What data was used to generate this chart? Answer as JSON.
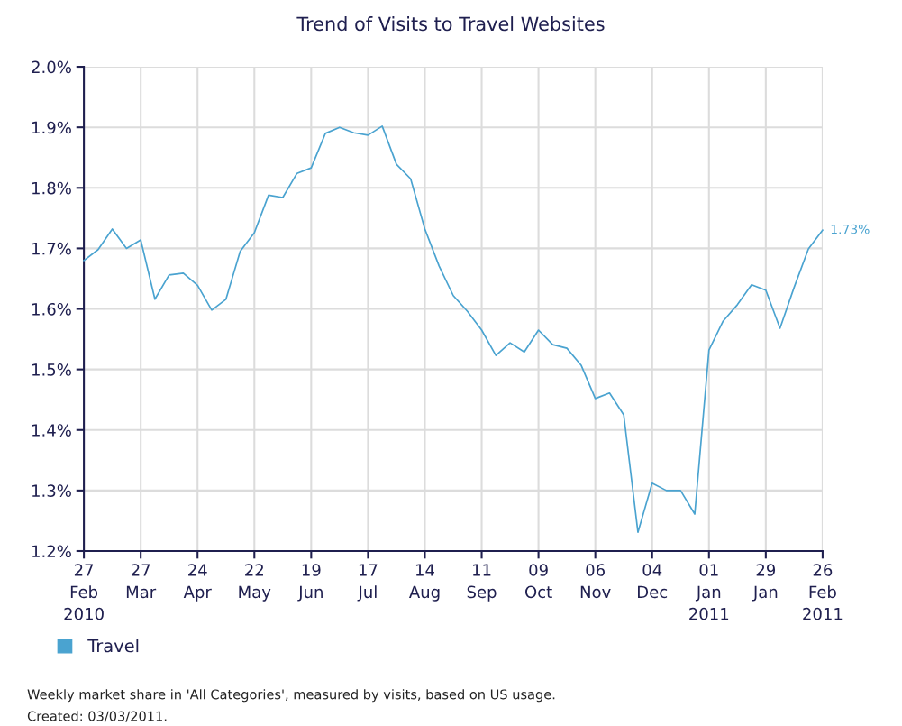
{
  "chart_data": {
    "type": "line",
    "title": "Trend of Visits to Travel Websites",
    "categories": [
      "27\nFeb\n2010",
      null,
      null,
      null,
      "27\nMar",
      null,
      null,
      null,
      "24\nApr",
      null,
      null,
      null,
      "22\nMay",
      null,
      null,
      null,
      "19\nJun",
      null,
      null,
      null,
      "17\nJul",
      null,
      null,
      null,
      "14\nAug",
      null,
      null,
      null,
      "11\nSep",
      null,
      null,
      null,
      "09\nOct",
      null,
      null,
      null,
      "06\nNov",
      null,
      null,
      null,
      "04\nDec",
      null,
      null,
      null,
      "01\nJan\n2011",
      null,
      null,
      null,
      "29\nJan",
      null,
      null,
      null,
      "26\nFeb\n2011"
    ],
    "series": [
      {
        "name": "Travel",
        "color": "#4aa3d0",
        "values": [
          1.68,
          1.698,
          1.732,
          1.7,
          1.714,
          1.616,
          1.656,
          1.659,
          1.639,
          1.598,
          1.616,
          1.695,
          1.726,
          1.788,
          1.784,
          1.824,
          1.833,
          1.89,
          1.9,
          1.891,
          1.887,
          1.902,
          1.839,
          1.815,
          1.732,
          1.671,
          1.622,
          1.596,
          1.565,
          1.523,
          1.544,
          1.529,
          1.565,
          1.541,
          1.535,
          1.507,
          1.452,
          1.461,
          1.425,
          1.231,
          1.312,
          1.3,
          1.3,
          1.261,
          1.532,
          1.58,
          1.607,
          1.64,
          1.631,
          1.568,
          1.636,
          1.699,
          1.73
        ],
        "value_labels": [
          null,
          null,
          null,
          null,
          null,
          null,
          null,
          null,
          null,
          null,
          null,
          null,
          null,
          null,
          null,
          null,
          null,
          null,
          null,
          null,
          null,
          null,
          null,
          null,
          null,
          null,
          null,
          null,
          null,
          null,
          null,
          null,
          null,
          null,
          null,
          null,
          null,
          null,
          null,
          null,
          null,
          null,
          null,
          null,
          null,
          null,
          null,
          null,
          null,
          null,
          null,
          null,
          "1.73%"
        ]
      }
    ],
    "ylim": [
      1.2,
      2.0
    ],
    "yticks": [
      {
        "value": 1.2,
        "label": "1.2%"
      },
      {
        "value": 1.3,
        "label": "1.3%"
      },
      {
        "value": 1.4,
        "label": "1.4%"
      },
      {
        "value": 1.5,
        "label": "1.5%"
      },
      {
        "value": 1.6,
        "label": "1.6%"
      },
      {
        "value": 1.7,
        "label": "1.7%"
      },
      {
        "value": 1.8,
        "label": "1.8%"
      },
      {
        "value": 1.9,
        "label": "1.9%"
      },
      {
        "value": 2.0,
        "label": "2.0%"
      }
    ],
    "grid": true,
    "legend": "bottom left",
    "marker": "none",
    "line_style": "solid",
    "annotations": [
      "Weekly market share in 'All Categories', measured by visits, based on US usage.",
      "Created: 03/03/2011."
    ]
  }
}
